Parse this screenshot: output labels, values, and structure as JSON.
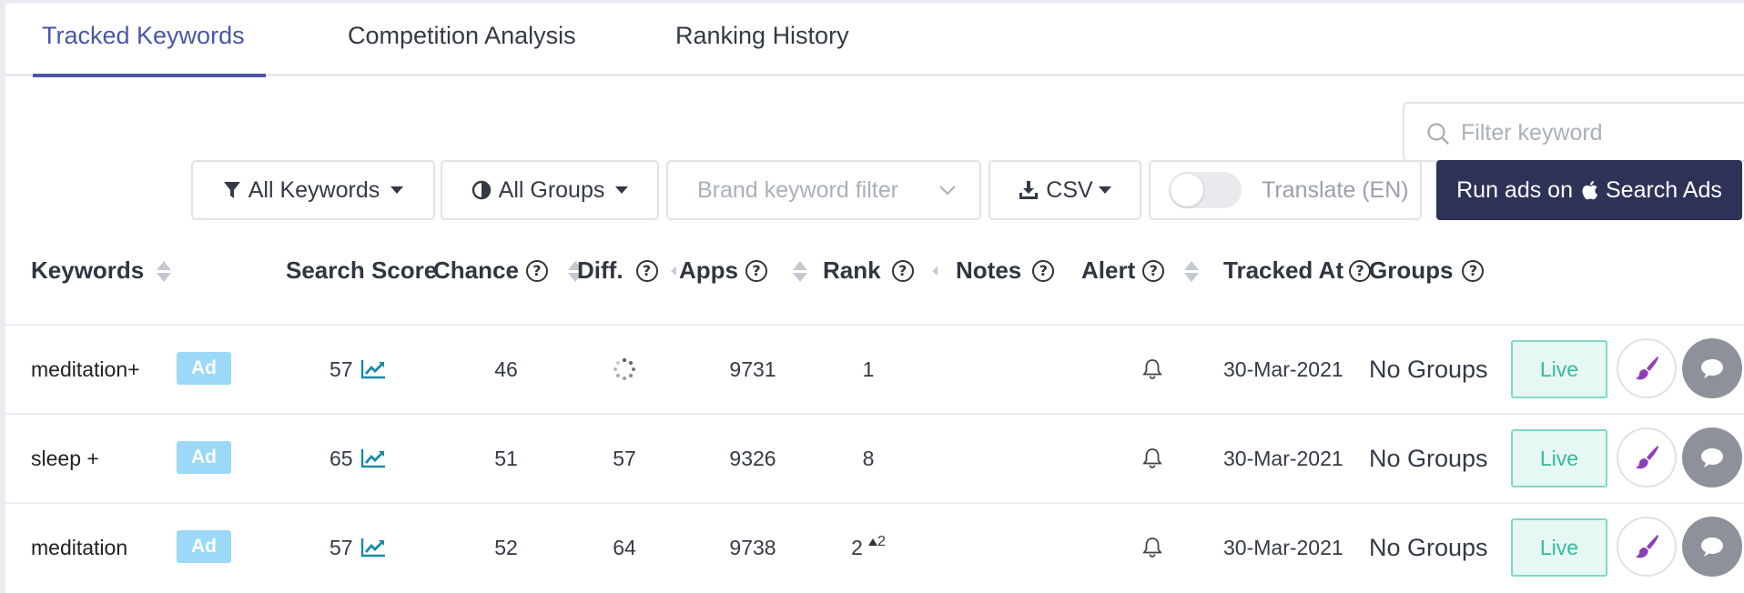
{
  "tabs": [
    {
      "label": "Tracked Keywords",
      "active": true
    },
    {
      "label": "Competition Analysis",
      "active": false
    },
    {
      "label": "Ranking History",
      "active": false
    }
  ],
  "search": {
    "placeholder": "Filter keyword"
  },
  "toolbar": {
    "all_keywords": "All Keywords",
    "all_groups": "All Groups",
    "brand_filter": "Brand keyword filter",
    "csv": "CSV",
    "translate": "Translate (EN)",
    "translate_on": false,
    "run_ads_prefix": "Run ads on",
    "run_ads_suffix": "Search Ads"
  },
  "columns": {
    "keywords": "Keywords",
    "search_score": "Search Score",
    "chance": "Chance",
    "diff": "Diff.",
    "apps": "Apps",
    "rank": "Rank",
    "notes": "Notes",
    "alert": "Alert",
    "tracked_at": "Tracked At",
    "groups": "Groups"
  },
  "rows": [
    {
      "keyword": "meditation+",
      "badge": "Ad",
      "score": "57",
      "chance": "46",
      "diff": "",
      "diff_loading": true,
      "apps": "9731",
      "rank": "1",
      "rank_delta": "",
      "tracked_at": "30-Mar-2021",
      "groups": "No Groups",
      "live": "Live"
    },
    {
      "keyword": "sleep +",
      "badge": "Ad",
      "score": "65",
      "chance": "51",
      "diff": "57",
      "diff_loading": false,
      "apps": "9326",
      "rank": "8",
      "rank_delta": "",
      "tracked_at": "30-Mar-2021",
      "groups": "No Groups",
      "live": "Live"
    },
    {
      "keyword": "meditation",
      "badge": "Ad",
      "score": "57",
      "chance": "52",
      "diff": "64",
      "diff_loading": false,
      "apps": "9738",
      "rank": "2",
      "rank_delta": "2",
      "tracked_at": "30-Mar-2021",
      "groups": "No Groups",
      "live": "Live"
    }
  ],
  "colors": {
    "accent": "#4a55a8",
    "run_ads_bg": "#2e3257",
    "ad_badge": "#9bd9f7",
    "live_text": "#37b99d",
    "trend_icon": "#1a8aa8",
    "brush_icon": "#8e3fb8"
  }
}
